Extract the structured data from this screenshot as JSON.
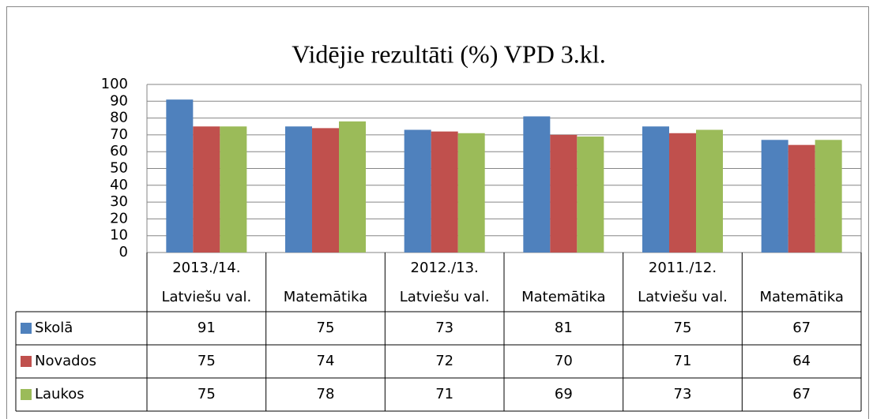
{
  "chart_data": {
    "type": "bar",
    "title": "Vidējie rezultāti  (%) VPD 3.kl.",
    "category_groups": [
      "2013./14.",
      null,
      "2012./13.",
      null,
      "2011./12.",
      null
    ],
    "categories": [
      "Latviešu val.",
      "Matemātika",
      "Latviešu val.",
      "Matemātika",
      "Latviešu val.",
      "Matemātika"
    ],
    "series": [
      {
        "name": "Skolā",
        "color": "#4f81bd",
        "values": [
          91,
          75,
          73,
          81,
          75,
          67
        ]
      },
      {
        "name": "Novados",
        "color": "#c0504d",
        "values": [
          75,
          74,
          72,
          70,
          71,
          64
        ]
      },
      {
        "name": "Laukos",
        "color": "#9bbb59",
        "values": [
          75,
          78,
          71,
          69,
          73,
          67
        ]
      }
    ],
    "ylim": [
      0,
      100
    ],
    "yticks": [
      0,
      10,
      20,
      30,
      40,
      50,
      60,
      70,
      80,
      90,
      100
    ],
    "grid": true,
    "data_table": true
  }
}
